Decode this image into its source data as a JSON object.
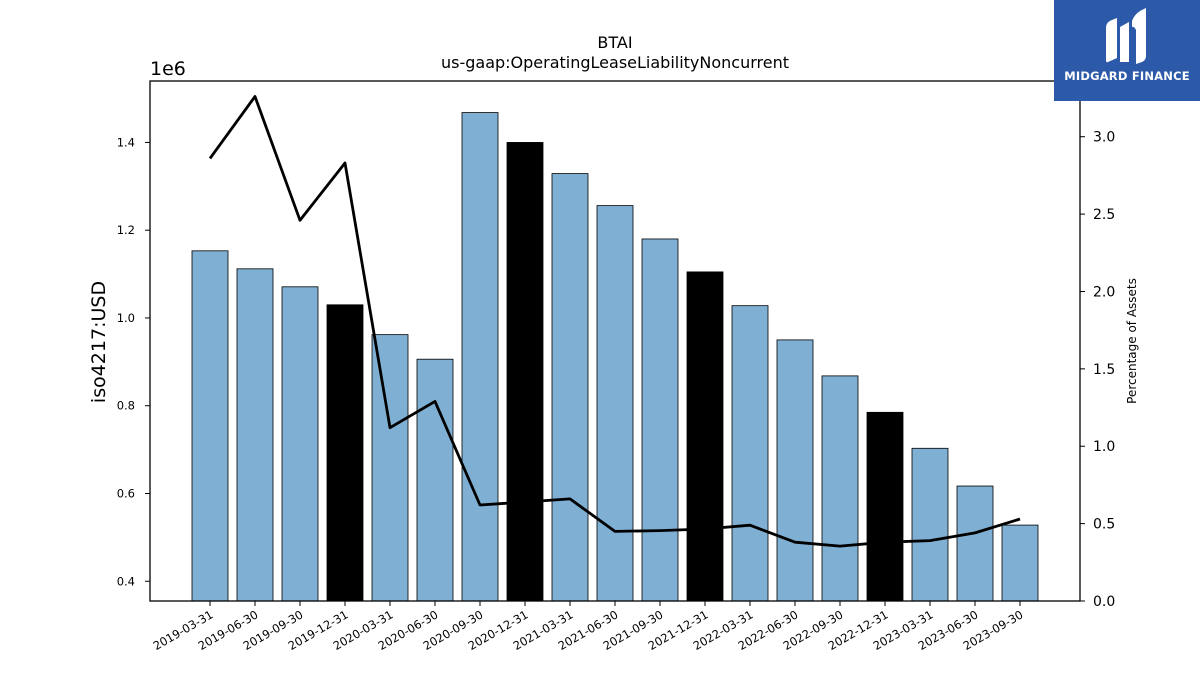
{
  "chart_data": {
    "type": "bar",
    "title": "BTAI",
    "subtitle": "us-gaap:OperatingLeaseLiabilityNoncurrent",
    "ylabel": "iso4217:USD",
    "y2label": "Percentage of Assets",
    "y_offset_label": "1e6",
    "categories": [
      "2019-03-31",
      "2019-06-30",
      "2019-09-30",
      "2019-12-31",
      "2020-03-31",
      "2020-06-30",
      "2020-09-30",
      "2020-12-31",
      "2021-03-31",
      "2021-06-30",
      "2021-09-30",
      "2021-12-31",
      "2022-03-31",
      "2022-06-30",
      "2022-09-30",
      "2022-12-31",
      "2023-03-31",
      "2023-06-30",
      "2023-09-30"
    ],
    "values": [
      1153000,
      1112000,
      1071000,
      1030000,
      962000,
      906000,
      1468000,
      1400000,
      1329000,
      1256000,
      1180000,
      1105000,
      1028000,
      950000,
      868000,
      785000,
      703000,
      617000,
      528000
    ],
    "annual_flags": [
      false,
      false,
      false,
      true,
      false,
      false,
      false,
      true,
      false,
      false,
      false,
      true,
      false,
      false,
      false,
      true,
      false,
      false,
      false
    ],
    "bar_color": "#7fafd3",
    "annual_bar_color": "#000000",
    "ylim": [
      0.355,
      1.54
    ],
    "y_ticks": [
      0.4,
      0.6,
      0.8,
      1.0,
      1.2,
      1.4
    ],
    "series": [
      {
        "name": "",
        "axis": "right",
        "color": "#000000",
        "values": [
          2.86,
          3.26,
          2.46,
          2.83,
          1.12,
          1.29,
          0.62,
          0.64,
          0.66,
          0.45,
          0.455,
          0.465,
          0.49,
          0.38,
          0.355,
          0.38,
          0.39,
          0.44,
          0.53
        ]
      }
    ],
    "y2lim": [
      0.0,
      3.36
    ],
    "y2_ticks": [
      0.0,
      0.5,
      1.0,
      1.5,
      2.0,
      2.5,
      3.0
    ],
    "grid": false
  },
  "logo": {
    "text": "MIDGARD FINANCE"
  }
}
